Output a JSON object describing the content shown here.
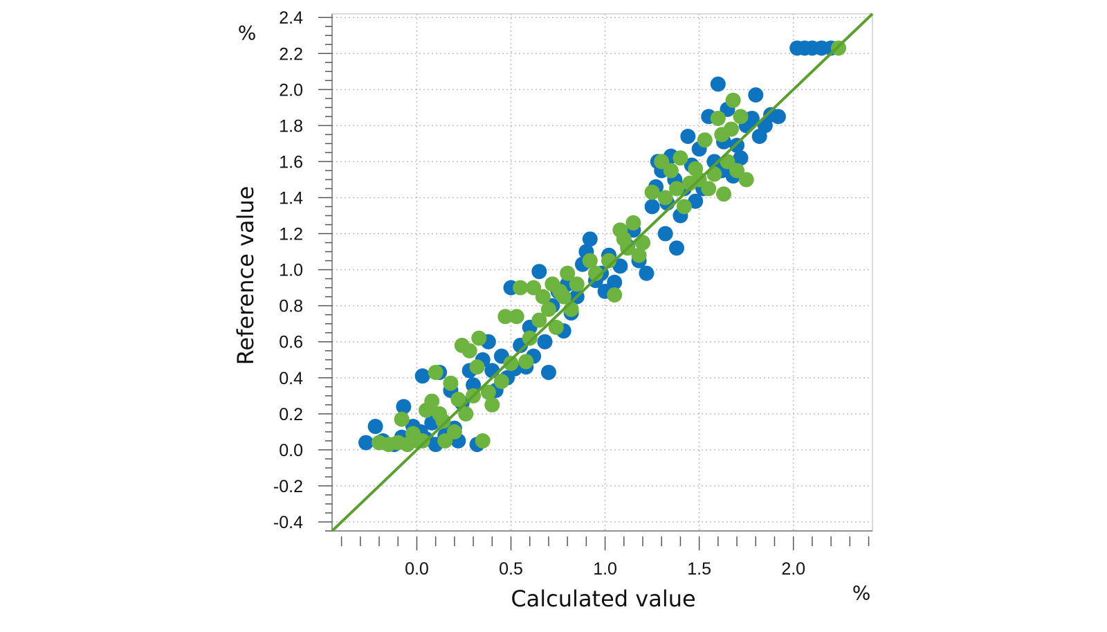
{
  "chart_data": {
    "type": "scatter",
    "xlabel": "Calculated value",
    "ylabel": "Reference value",
    "x_unit": "%",
    "y_unit": "%",
    "xlim": [
      -0.45,
      2.42
    ],
    "ylim": [
      -0.45,
      2.42
    ],
    "x_ticks": [
      "0.0",
      "0.5",
      "1.0",
      "1.5",
      "2.0"
    ],
    "y_ticks": [
      "2.4",
      "2.2",
      "2.0",
      "1.8",
      "1.6",
      "1.4",
      "1.2",
      "1.0",
      "0.8",
      "0.6",
      "0.4",
      "0.2",
      "0.0",
      "-0.2",
      "-0.4"
    ],
    "grid": true,
    "reference_line": {
      "from": [
        -0.45,
        -0.45
      ],
      "to": [
        2.42,
        2.42
      ],
      "color": "#5aa02c"
    },
    "series": [
      {
        "color": "#0f74c0",
        "points": [
          [
            -0.27,
            0.04
          ],
          [
            -0.22,
            0.13
          ],
          [
            -0.18,
            0.05
          ],
          [
            -0.12,
            0.03
          ],
          [
            -0.08,
            0.07
          ],
          [
            -0.07,
            0.24
          ],
          [
            -0.02,
            0.13
          ],
          [
            0.02,
            0.1
          ],
          [
            0.03,
            0.41
          ],
          [
            0.05,
            0.06
          ],
          [
            0.08,
            0.15
          ],
          [
            0.1,
            0.03
          ],
          [
            0.12,
            0.43
          ],
          [
            0.15,
            0.08
          ],
          [
            0.18,
            0.33
          ],
          [
            0.2,
            0.12
          ],
          [
            0.22,
            0.05
          ],
          [
            0.24,
            0.26
          ],
          [
            0.28,
            0.44
          ],
          [
            0.3,
            0.36
          ],
          [
            0.32,
            0.03
          ],
          [
            0.35,
            0.5
          ],
          [
            0.38,
            0.6
          ],
          [
            0.4,
            0.44
          ],
          [
            0.42,
            0.33
          ],
          [
            0.45,
            0.52
          ],
          [
            0.48,
            0.4
          ],
          [
            0.5,
            0.9
          ],
          [
            0.52,
            0.45
          ],
          [
            0.55,
            0.58
          ],
          [
            0.58,
            0.46
          ],
          [
            0.6,
            0.68
          ],
          [
            0.62,
            0.52
          ],
          [
            0.65,
            0.99
          ],
          [
            0.68,
            0.6
          ],
          [
            0.7,
            0.43
          ],
          [
            0.72,
            0.8
          ],
          [
            0.75,
            0.88
          ],
          [
            0.78,
            0.66
          ],
          [
            0.8,
            0.92
          ],
          [
            0.82,
            0.76
          ],
          [
            0.85,
            0.85
          ],
          [
            0.88,
            1.03
          ],
          [
            0.9,
            1.1
          ],
          [
            0.92,
            1.17
          ],
          [
            0.95,
            0.94
          ],
          [
            0.98,
            0.98
          ],
          [
            1.0,
            0.88
          ],
          [
            1.02,
            1.08
          ],
          [
            1.05,
            0.93
          ],
          [
            1.08,
            1.02
          ],
          [
            1.1,
            1.2
          ],
          [
            1.12,
            1.13
          ],
          [
            1.15,
            1.22
          ],
          [
            1.18,
            1.05
          ],
          [
            1.2,
            1.15
          ],
          [
            1.22,
            0.98
          ],
          [
            1.25,
            1.35
          ],
          [
            1.27,
            1.46
          ],
          [
            1.28,
            1.6
          ],
          [
            1.3,
            1.55
          ],
          [
            1.32,
            1.2
          ],
          [
            1.33,
            1.37
          ],
          [
            1.35,
            1.63
          ],
          [
            1.37,
            1.5
          ],
          [
            1.38,
            1.12
          ],
          [
            1.4,
            1.3
          ],
          [
            1.42,
            1.45
          ],
          [
            1.44,
            1.74
          ],
          [
            1.46,
            1.58
          ],
          [
            1.48,
            1.38
          ],
          [
            1.5,
            1.67
          ],
          [
            1.52,
            1.45
          ],
          [
            1.55,
            1.85
          ],
          [
            1.58,
            1.6
          ],
          [
            1.6,
            2.03
          ],
          [
            1.62,
            1.55
          ],
          [
            1.63,
            1.71
          ],
          [
            1.65,
            1.89
          ],
          [
            1.68,
            1.52
          ],
          [
            1.7,
            1.69
          ],
          [
            1.72,
            1.62
          ],
          [
            1.75,
            1.8
          ],
          [
            1.78,
            1.84
          ],
          [
            1.8,
            1.97
          ],
          [
            1.82,
            1.74
          ],
          [
            1.85,
            1.8
          ],
          [
            1.88,
            1.86
          ],
          [
            1.92,
            1.85
          ],
          [
            2.02,
            2.23
          ],
          [
            2.06,
            2.23
          ],
          [
            2.1,
            2.23
          ],
          [
            2.15,
            2.23
          ],
          [
            2.2,
            2.23
          ]
        ]
      },
      {
        "color": "#6db33f",
        "points": [
          [
            -0.2,
            0.04
          ],
          [
            -0.15,
            0.03
          ],
          [
            -0.1,
            0.04
          ],
          [
            -0.08,
            0.17
          ],
          [
            -0.05,
            0.03
          ],
          [
            -0.02,
            0.09
          ],
          [
            0.0,
            0.05
          ],
          [
            0.03,
            0.05
          ],
          [
            0.05,
            0.22
          ],
          [
            0.08,
            0.27
          ],
          [
            0.1,
            0.43
          ],
          [
            0.12,
            0.2
          ],
          [
            0.14,
            0.16
          ],
          [
            0.15,
            0.05
          ],
          [
            0.18,
            0.37
          ],
          [
            0.2,
            0.1
          ],
          [
            0.22,
            0.28
          ],
          [
            0.24,
            0.58
          ],
          [
            0.26,
            0.2
          ],
          [
            0.28,
            0.55
          ],
          [
            0.3,
            0.3
          ],
          [
            0.32,
            0.46
          ],
          [
            0.33,
            0.62
          ],
          [
            0.35,
            0.05
          ],
          [
            0.38,
            0.32
          ],
          [
            0.4,
            0.25
          ],
          [
            0.45,
            0.38
          ],
          [
            0.47,
            0.74
          ],
          [
            0.5,
            0.48
          ],
          [
            0.53,
            0.74
          ],
          [
            0.55,
            0.9
          ],
          [
            0.58,
            0.49
          ],
          [
            0.6,
            0.62
          ],
          [
            0.62,
            0.9
          ],
          [
            0.65,
            0.72
          ],
          [
            0.67,
            0.85
          ],
          [
            0.7,
            0.78
          ],
          [
            0.72,
            0.92
          ],
          [
            0.74,
            0.68
          ],
          [
            0.76,
            0.88
          ],
          [
            0.78,
            0.85
          ],
          [
            0.8,
            0.98
          ],
          [
            0.82,
            0.78
          ],
          [
            0.85,
            0.92
          ],
          [
            0.92,
            1.05
          ],
          [
            0.95,
            0.98
          ],
          [
            1.02,
            1.05
          ],
          [
            1.05,
            0.86
          ],
          [
            1.08,
            1.22
          ],
          [
            1.1,
            1.17
          ],
          [
            1.12,
            1.12
          ],
          [
            1.15,
            1.26
          ],
          [
            1.18,
            1.08
          ],
          [
            1.2,
            1.15
          ],
          [
            1.25,
            1.43
          ],
          [
            1.3,
            1.6
          ],
          [
            1.32,
            1.4
          ],
          [
            1.35,
            1.55
          ],
          [
            1.38,
            1.45
          ],
          [
            1.4,
            1.62
          ],
          [
            1.42,
            1.35
          ],
          [
            1.45,
            1.48
          ],
          [
            1.48,
            1.56
          ],
          [
            1.5,
            1.5
          ],
          [
            1.53,
            1.72
          ],
          [
            1.55,
            1.45
          ],
          [
            1.58,
            1.53
          ],
          [
            1.6,
            1.84
          ],
          [
            1.62,
            1.75
          ],
          [
            1.63,
            1.42
          ],
          [
            1.65,
            1.6
          ],
          [
            1.67,
            1.78
          ],
          [
            1.68,
            1.94
          ],
          [
            1.7,
            1.55
          ],
          [
            1.72,
            1.85
          ],
          [
            1.75,
            1.5
          ],
          [
            2.24,
            2.23
          ]
        ]
      }
    ]
  }
}
